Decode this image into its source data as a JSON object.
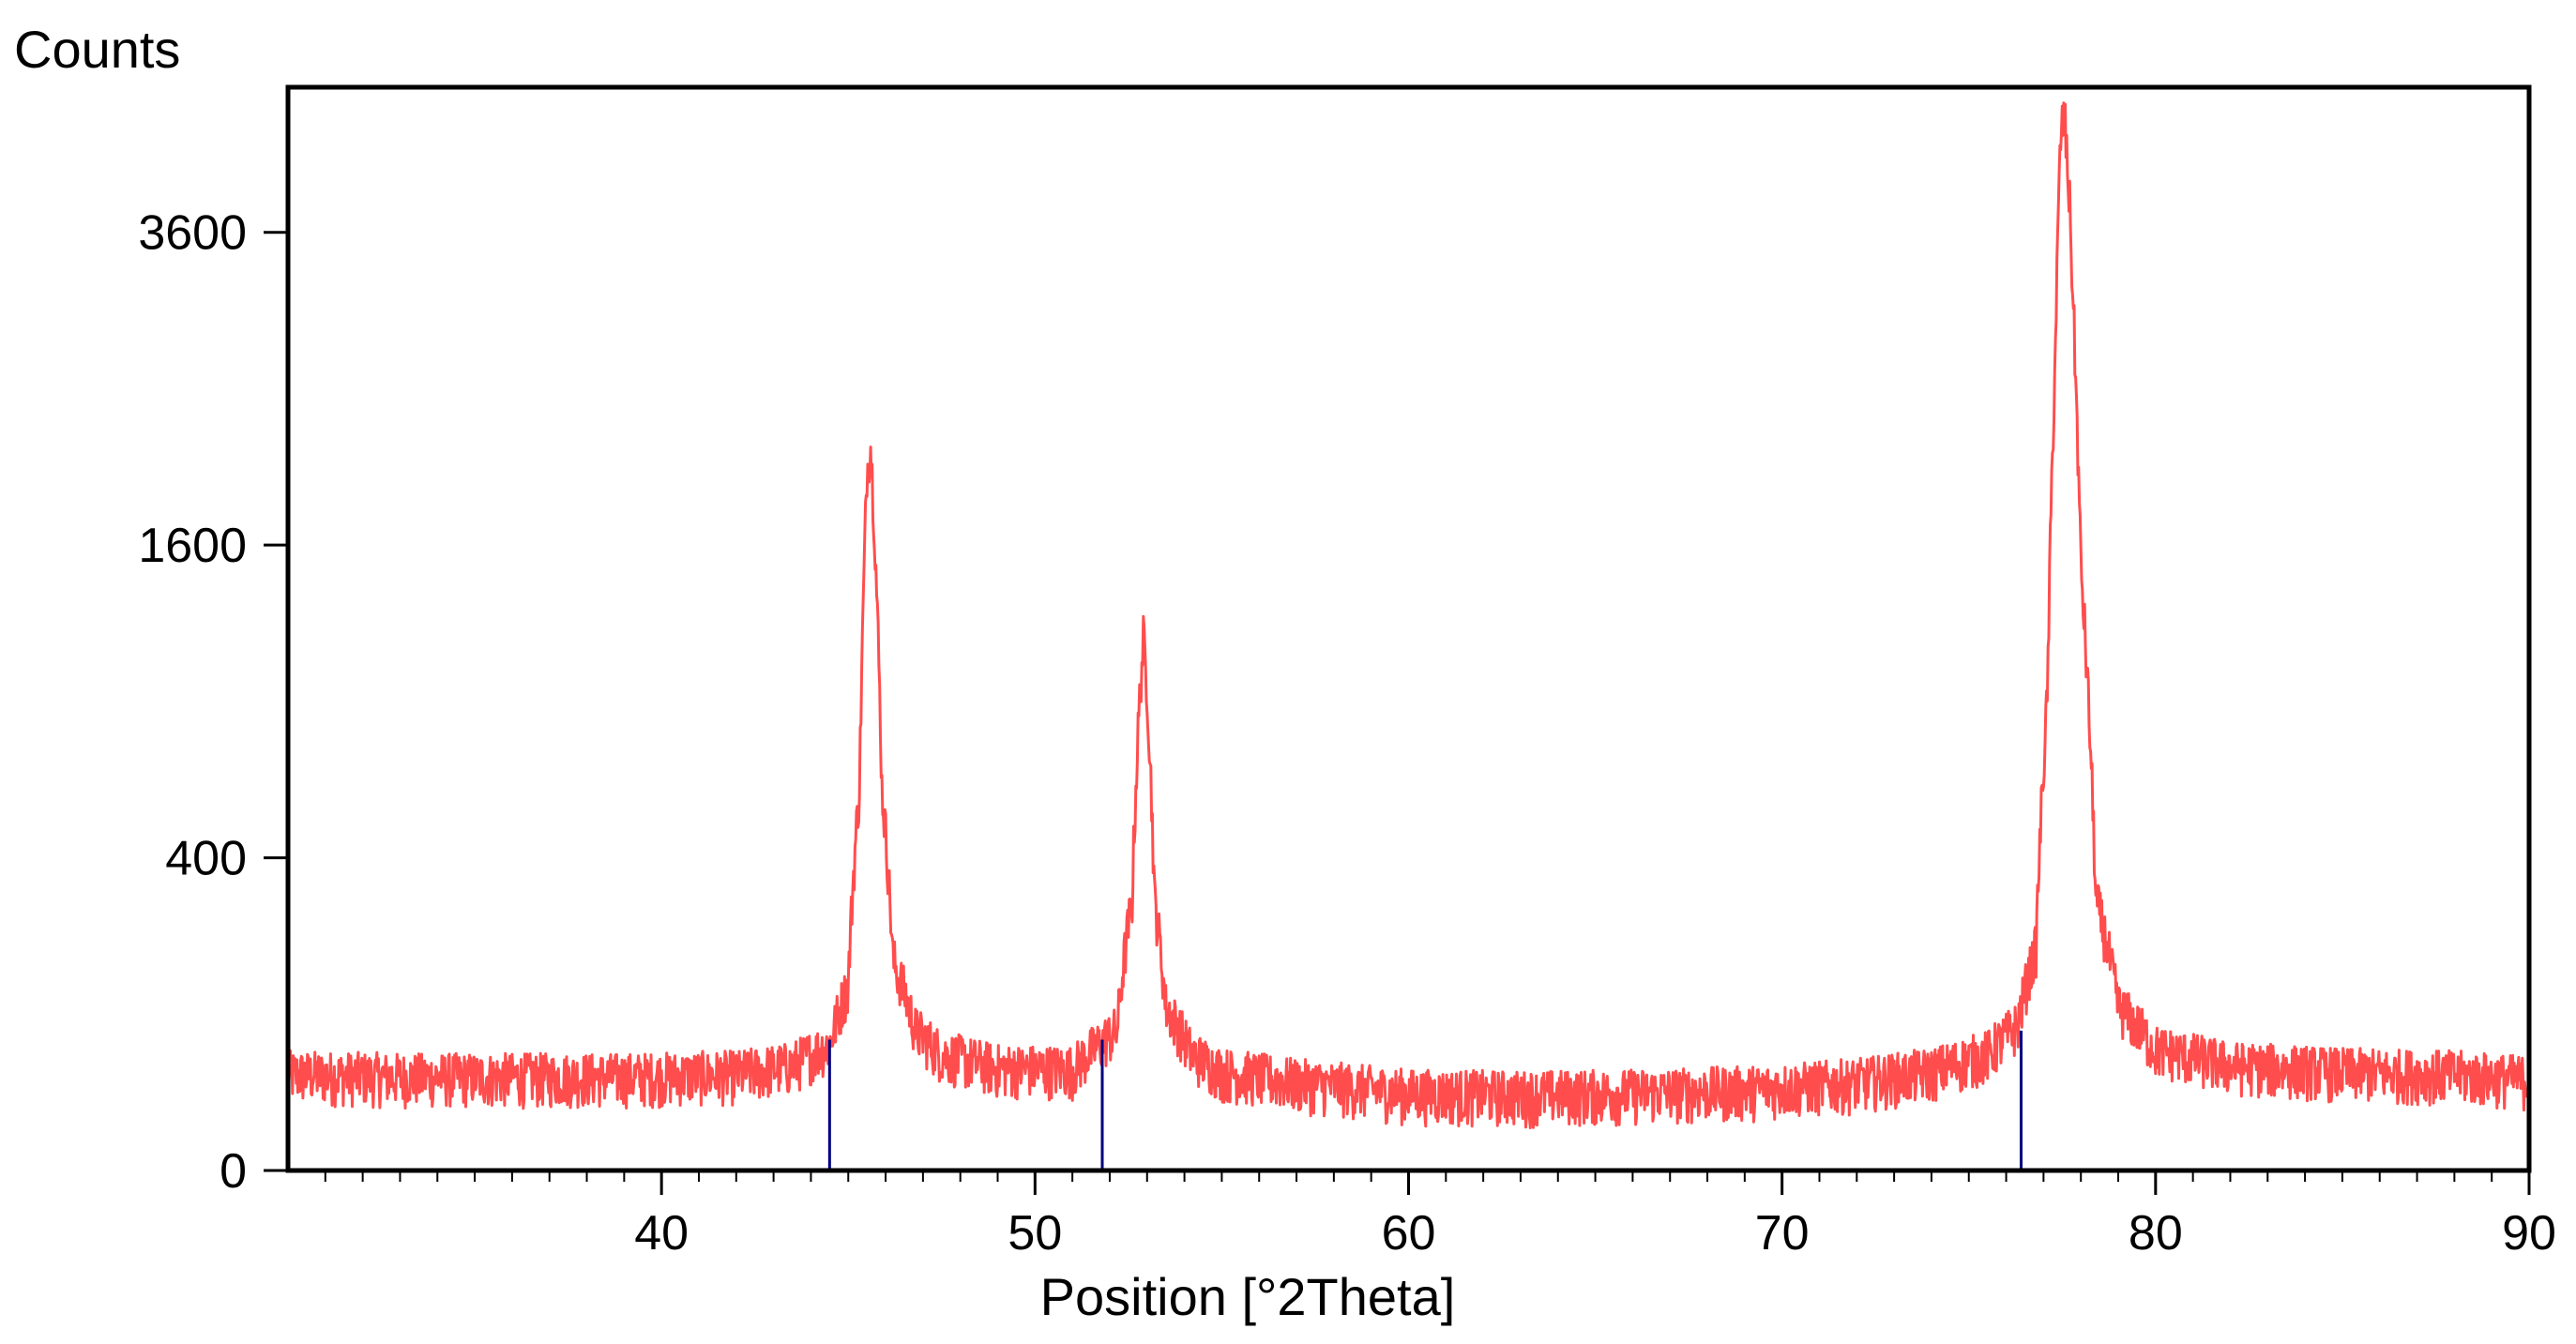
{
  "chart_data": {
    "type": "line",
    "title": "",
    "xlabel": "Position [°2Theta]",
    "ylabel": "Counts",
    "x_range": [
      30,
      90
    ],
    "y_range": [
      0,
      4800
    ],
    "y_scale": "sqrt",
    "grid": false,
    "x_ticks": [
      {
        "value": 40,
        "label": "40"
      },
      {
        "value": 50,
        "label": "50"
      },
      {
        "value": 60,
        "label": "60"
      },
      {
        "value": 70,
        "label": "70"
      },
      {
        "value": 80,
        "label": "80"
      },
      {
        "value": 90,
        "label": "90"
      }
    ],
    "y_ticks": [
      {
        "value": 0,
        "label": "0"
      },
      {
        "value": 400,
        "label": "400"
      },
      {
        "value": 1600,
        "label": "1600"
      },
      {
        "value": 3600,
        "label": "3600"
      }
    ],
    "series": [
      {
        "color": "#ff4d4d",
        "x": [
          30,
          33,
          36,
          39,
          42,
          43.5,
          44.5,
          45.0,
          45.3,
          45.5,
          45.6,
          45.7,
          45.9,
          46.2,
          46.8,
          47.5,
          49,
          51,
          52.2,
          52.6,
          52.8,
          52.9,
          53.0,
          53.2,
          53.5,
          54.2,
          55,
          57,
          60,
          63,
          66,
          69,
          72,
          74,
          75.5,
          76.3,
          76.8,
          77.1,
          77.3,
          77.45,
          77.55,
          77.7,
          78.0,
          78.4,
          79.0,
          80,
          82,
          85,
          88,
          90
        ],
        "y": [
          38,
          36,
          36,
          36,
          38,
          45,
          65,
          140,
          600,
          2000,
          2150,
          1700,
          600,
          180,
          80,
          55,
          43,
          42,
          80,
          300,
          900,
          1150,
          950,
          300,
          110,
          55,
          40,
          32,
          25,
          24,
          25,
          27,
          32,
          40,
          55,
          85,
          200,
          900,
          2600,
          4300,
          4600,
          3800,
          1500,
          300,
          110,
          60,
          45,
          40,
          38,
          34
        ]
      }
    ],
    "reference_markers": {
      "color": "#000080",
      "x": [
        44.5,
        51.8,
        76.4
      ],
      "y": [
        70,
        70,
        80
      ]
    }
  }
}
